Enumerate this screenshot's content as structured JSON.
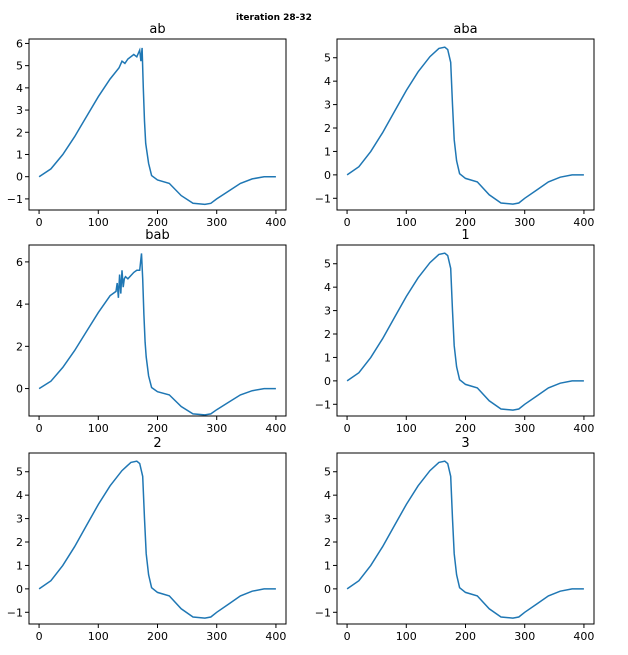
{
  "figure_title": "iteration 28-32",
  "line_color": "#1f77b4",
  "chart_data": [
    {
      "type": "line",
      "title": "ab",
      "xlim": [
        -17,
        417
      ],
      "ylim": [
        -1.5,
        6.2
      ],
      "xticks": [
        0,
        100,
        200,
        300,
        400
      ],
      "xtick_labels": [
        "0",
        "100",
        "200",
        "300",
        "400"
      ],
      "yticks": [
        -1,
        0,
        1,
        2,
        3,
        4,
        5,
        6
      ],
      "ytick_labels": [
        "−1",
        "0",
        "1",
        "2",
        "3",
        "4",
        "5",
        "6"
      ],
      "series": [
        {
          "name": "ab",
          "x": [
            0,
            20,
            40,
            60,
            80,
            100,
            120,
            135,
            140,
            145,
            150,
            160,
            165,
            170,
            172,
            174,
            176,
            178,
            180,
            185,
            190,
            200,
            220,
            240,
            260,
            280,
            290,
            300,
            320,
            340,
            360,
            380,
            400
          ],
          "y": [
            0,
            0.35,
            1.0,
            1.8,
            2.7,
            3.6,
            4.4,
            4.9,
            5.2,
            5.1,
            5.3,
            5.5,
            5.4,
            5.7,
            5.2,
            5.8,
            4.0,
            2.5,
            1.5,
            0.6,
            0.05,
            -0.15,
            -0.3,
            -0.85,
            -1.2,
            -1.25,
            -1.2,
            -1.0,
            -0.65,
            -0.3,
            -0.1,
            0.0,
            0.0
          ]
        }
      ]
    },
    {
      "type": "line",
      "title": "aba",
      "xlim": [
        -17,
        417
      ],
      "ylim": [
        -1.5,
        5.8
      ],
      "xticks": [
        0,
        100,
        200,
        300,
        400
      ],
      "xtick_labels": [
        "0",
        "100",
        "200",
        "300",
        "400"
      ],
      "yticks": [
        -1,
        0,
        1,
        2,
        3,
        4,
        5
      ],
      "ytick_labels": [
        "−1",
        "0",
        "1",
        "2",
        "3",
        "4",
        "5"
      ],
      "series": [
        {
          "name": "aba",
          "x": [
            0,
            20,
            40,
            60,
            80,
            100,
            120,
            140,
            155,
            165,
            170,
            175,
            178,
            181,
            185,
            190,
            200,
            220,
            240,
            260,
            280,
            290,
            300,
            320,
            340,
            360,
            380,
            400
          ],
          "y": [
            0,
            0.35,
            1.0,
            1.8,
            2.7,
            3.6,
            4.4,
            5.05,
            5.4,
            5.45,
            5.35,
            4.8,
            3.0,
            1.5,
            0.6,
            0.05,
            -0.15,
            -0.3,
            -0.85,
            -1.2,
            -1.25,
            -1.2,
            -1.0,
            -0.65,
            -0.3,
            -0.1,
            0.0,
            0.0
          ]
        }
      ]
    },
    {
      "type": "line",
      "title": "bab",
      "xlim": [
        -17,
        417
      ],
      "ylim": [
        -1.3,
        6.8
      ],
      "xticks": [
        0,
        100,
        200,
        300,
        400
      ],
      "xtick_labels": [
        "0",
        "100",
        "200",
        "300",
        "400"
      ],
      "yticks": [
        0,
        2,
        4,
        6
      ],
      "ytick_labels": [
        "0",
        "2",
        "4",
        "6"
      ],
      "series": [
        {
          "name": "bab",
          "x": [
            0,
            20,
            40,
            60,
            80,
            100,
            120,
            130,
            132,
            134,
            136,
            138,
            140,
            142,
            144,
            146,
            150,
            160,
            165,
            170,
            173,
            175,
            177,
            179,
            181,
            185,
            190,
            200,
            220,
            240,
            260,
            280,
            290,
            300,
            320,
            340,
            360,
            380,
            400
          ],
          "y": [
            0,
            0.35,
            1.0,
            1.8,
            2.7,
            3.6,
            4.4,
            4.6,
            5.0,
            4.3,
            5.4,
            4.5,
            5.6,
            4.8,
            5.2,
            5.3,
            5.2,
            5.5,
            5.6,
            5.6,
            6.4,
            5.2,
            3.5,
            2.2,
            1.5,
            0.6,
            0.05,
            -0.15,
            -0.3,
            -0.85,
            -1.2,
            -1.25,
            -1.2,
            -1.0,
            -0.65,
            -0.3,
            -0.1,
            0.0,
            0.0
          ]
        }
      ]
    },
    {
      "type": "line",
      "title": "1",
      "xlim": [
        -17,
        417
      ],
      "ylim": [
        -1.5,
        5.8
      ],
      "xticks": [
        0,
        100,
        200,
        300,
        400
      ],
      "xtick_labels": [
        "0",
        "100",
        "200",
        "300",
        "400"
      ],
      "yticks": [
        -1,
        0,
        1,
        2,
        3,
        4,
        5
      ],
      "ytick_labels": [
        "−1",
        "0",
        "1",
        "2",
        "3",
        "4",
        "5"
      ],
      "series": [
        {
          "name": "1",
          "x": [
            0,
            20,
            40,
            60,
            80,
            100,
            120,
            140,
            155,
            165,
            170,
            175,
            178,
            181,
            185,
            190,
            200,
            220,
            240,
            260,
            280,
            290,
            300,
            320,
            340,
            360,
            380,
            400
          ],
          "y": [
            0,
            0.35,
            1.0,
            1.8,
            2.7,
            3.6,
            4.4,
            5.05,
            5.4,
            5.45,
            5.35,
            4.8,
            3.0,
            1.5,
            0.6,
            0.05,
            -0.15,
            -0.3,
            -0.85,
            -1.2,
            -1.25,
            -1.2,
            -1.0,
            -0.65,
            -0.3,
            -0.1,
            0.0,
            0.0
          ]
        }
      ]
    },
    {
      "type": "line",
      "title": "2",
      "xlim": [
        -17,
        417
      ],
      "ylim": [
        -1.5,
        5.8
      ],
      "xticks": [
        0,
        100,
        200,
        300,
        400
      ],
      "xtick_labels": [
        "0",
        "100",
        "200",
        "300",
        "400"
      ],
      "yticks": [
        -1,
        0,
        1,
        2,
        3,
        4,
        5
      ],
      "ytick_labels": [
        "−1",
        "0",
        "1",
        "2",
        "3",
        "4",
        "5"
      ],
      "series": [
        {
          "name": "2",
          "x": [
            0,
            20,
            40,
            60,
            80,
            100,
            120,
            140,
            155,
            165,
            170,
            175,
            178,
            181,
            185,
            190,
            200,
            220,
            240,
            260,
            280,
            290,
            300,
            320,
            340,
            360,
            380,
            400
          ],
          "y": [
            0,
            0.35,
            1.0,
            1.8,
            2.7,
            3.6,
            4.4,
            5.05,
            5.4,
            5.45,
            5.35,
            4.8,
            3.0,
            1.5,
            0.6,
            0.05,
            -0.15,
            -0.3,
            -0.85,
            -1.2,
            -1.25,
            -1.2,
            -1.0,
            -0.65,
            -0.3,
            -0.1,
            0.0,
            0.0
          ]
        }
      ]
    },
    {
      "type": "line",
      "title": "3",
      "xlim": [
        -17,
        417
      ],
      "ylim": [
        -1.5,
        5.8
      ],
      "xticks": [
        0,
        100,
        200,
        300,
        400
      ],
      "xtick_labels": [
        "0",
        "100",
        "200",
        "300",
        "400"
      ],
      "yticks": [
        -1,
        0,
        1,
        2,
        3,
        4,
        5
      ],
      "ytick_labels": [
        "−1",
        "0",
        "1",
        "2",
        "3",
        "4",
        "5"
      ],
      "series": [
        {
          "name": "3",
          "x": [
            0,
            20,
            40,
            60,
            80,
            100,
            120,
            140,
            155,
            165,
            170,
            175,
            178,
            181,
            185,
            190,
            200,
            220,
            240,
            260,
            280,
            290,
            300,
            320,
            340,
            360,
            380,
            400
          ],
          "y": [
            0,
            0.35,
            1.0,
            1.8,
            2.7,
            3.6,
            4.4,
            5.05,
            5.4,
            5.45,
            5.35,
            4.8,
            3.0,
            1.5,
            0.6,
            0.05,
            -0.15,
            -0.3,
            -0.85,
            -1.2,
            -1.25,
            -1.2,
            -1.0,
            -0.65,
            -0.3,
            -0.1,
            0.0,
            0.0
          ]
        }
      ]
    }
  ]
}
